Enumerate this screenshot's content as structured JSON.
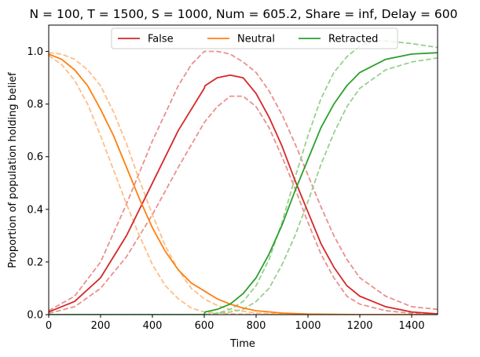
{
  "chart_data": {
    "type": "line",
    "title": "N = 100, T = 1500, S = 1000, Num = 605.2, Share = inf, Delay = 600",
    "xlabel": "Time",
    "ylabel": "Proportion of population holding belief",
    "xlim": [
      0,
      1500
    ],
    "ylim": [
      0,
      1.1
    ],
    "xticks": [
      0,
      200,
      400,
      600,
      800,
      1000,
      1200,
      1400
    ],
    "yticks": [
      0.0,
      0.2,
      0.4,
      0.6,
      0.8,
      1.0
    ],
    "grid": false,
    "legend": {
      "placement": "top-center",
      "entries": [
        "False",
        "Neutral",
        "Retracted"
      ]
    },
    "series": [
      {
        "name": "False",
        "color": "#d62728",
        "style": "solid",
        "x": [
          0,
          100,
          200,
          300,
          400,
          500,
          600,
          603,
          650,
          700,
          750,
          800,
          850,
          900,
          950,
          1000,
          1050,
          1100,
          1150,
          1200,
          1300,
          1400,
          1500
        ],
        "y": [
          0.01,
          0.05,
          0.14,
          0.3,
          0.5,
          0.7,
          0.86,
          0.87,
          0.9,
          0.91,
          0.9,
          0.84,
          0.75,
          0.64,
          0.51,
          0.39,
          0.27,
          0.18,
          0.11,
          0.07,
          0.03,
          0.01,
          0.003
        ]
      },
      {
        "name": "Neutral",
        "color": "#ff7f0e",
        "style": "solid",
        "x": [
          0,
          50,
          100,
          150,
          200,
          250,
          300,
          350,
          400,
          450,
          500,
          550,
          600,
          650,
          700,
          750,
          800,
          900,
          1000,
          1100,
          1200,
          1500
        ],
        "y": [
          0.99,
          0.97,
          0.93,
          0.87,
          0.78,
          0.68,
          0.56,
          0.44,
          0.33,
          0.24,
          0.17,
          0.12,
          0.09,
          0.06,
          0.04,
          0.025,
          0.015,
          0.006,
          0.002,
          0.001,
          0.0,
          0.0
        ]
      },
      {
        "name": "Retracted",
        "color": "#2ca02c",
        "style": "solid",
        "x": [
          0,
          600,
          603,
          650,
          700,
          750,
          800,
          850,
          900,
          950,
          1000,
          1050,
          1100,
          1150,
          1200,
          1300,
          1400,
          1500
        ],
        "y": [
          0,
          0,
          0.01,
          0.02,
          0.04,
          0.08,
          0.14,
          0.23,
          0.34,
          0.47,
          0.59,
          0.71,
          0.8,
          0.87,
          0.92,
          0.97,
          0.99,
          0.995
        ]
      },
      {
        "color": "#e8918f",
        "style": "dashed",
        "x": [
          0,
          100,
          200,
          300,
          400,
          500,
          550,
          600,
          650,
          700,
          750,
          800,
          850,
          900,
          950,
          1000,
          1050,
          1100,
          1150,
          1200,
          1300,
          1400,
          1500
        ],
        "y": [
          0.015,
          0.07,
          0.2,
          0.42,
          0.66,
          0.87,
          0.95,
          1.0,
          1.0,
          0.99,
          0.96,
          0.92,
          0.85,
          0.76,
          0.65,
          0.53,
          0.41,
          0.3,
          0.21,
          0.14,
          0.07,
          0.03,
          0.02
        ]
      },
      {
        "color": "#e8918f",
        "style": "dashed",
        "x": [
          0,
          100,
          200,
          300,
          400,
          500,
          600,
          650,
          700,
          750,
          800,
          850,
          900,
          950,
          1000,
          1050,
          1100,
          1150,
          1200,
          1300,
          1400,
          1500
        ],
        "y": [
          0.005,
          0.03,
          0.1,
          0.22,
          0.38,
          0.56,
          0.73,
          0.79,
          0.83,
          0.83,
          0.79,
          0.71,
          0.6,
          0.48,
          0.35,
          0.23,
          0.14,
          0.07,
          0.04,
          0.015,
          0.005,
          0.002
        ]
      },
      {
        "color": "#ffbe86",
        "style": "dashed",
        "x": [
          0,
          50,
          100,
          150,
          200,
          250,
          300,
          350,
          400,
          450,
          500,
          550,
          600,
          650,
          700,
          800,
          900,
          1000,
          1200,
          1500
        ],
        "y": [
          0.995,
          0.99,
          0.97,
          0.93,
          0.87,
          0.77,
          0.65,
          0.51,
          0.38,
          0.26,
          0.17,
          0.1,
          0.06,
          0.035,
          0.02,
          0.006,
          0.002,
          0.0,
          0.0,
          0.0
        ]
      },
      {
        "color": "#ffbe86",
        "style": "dashed",
        "x": [
          0,
          50,
          100,
          150,
          200,
          250,
          300,
          350,
          400,
          450,
          500,
          550,
          600,
          700,
          800,
          1000,
          1500
        ],
        "y": [
          0.985,
          0.95,
          0.89,
          0.8,
          0.68,
          0.55,
          0.42,
          0.3,
          0.19,
          0.11,
          0.06,
          0.025,
          0.01,
          0.003,
          0.001,
          0.0,
          0.0
        ]
      },
      {
        "color": "#98d08e",
        "style": "dashed",
        "x": [
          0,
          600,
          650,
          700,
          750,
          800,
          850,
          900,
          950,
          1000,
          1050,
          1100,
          1150,
          1200,
          1250,
          1300,
          1400,
          1500
        ],
        "y": [
          0,
          0,
          0.005,
          0.02,
          0.05,
          0.11,
          0.21,
          0.35,
          0.52,
          0.68,
          0.82,
          0.92,
          0.98,
          1.02,
          1.04,
          1.04,
          1.03,
          1.015
        ]
      },
      {
        "color": "#98d08e",
        "style": "dashed",
        "x": [
          0,
          600,
          650,
          700,
          750,
          800,
          850,
          900,
          950,
          1000,
          1050,
          1100,
          1150,
          1200,
          1300,
          1400,
          1500
        ],
        "y": [
          0,
          0,
          0.005,
          0.01,
          0.02,
          0.05,
          0.1,
          0.19,
          0.3,
          0.43,
          0.57,
          0.69,
          0.79,
          0.86,
          0.93,
          0.96,
          0.975
        ]
      }
    ]
  }
}
